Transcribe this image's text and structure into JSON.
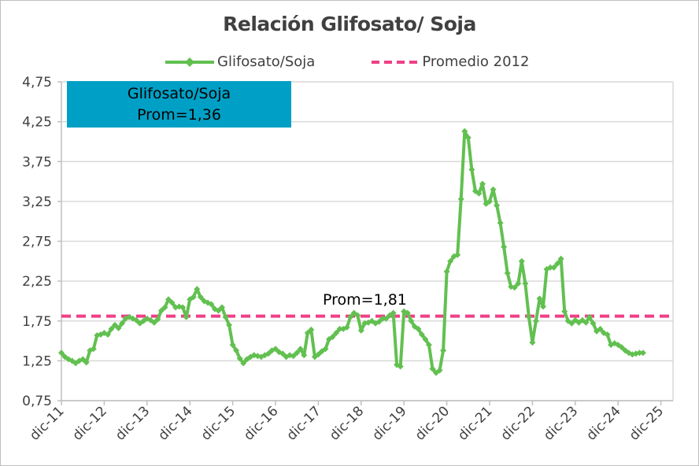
{
  "chart_data": {
    "type": "line",
    "title": "Relación Glifosato/ Soja",
    "xlabel": "",
    "ylabel": "",
    "ylim": [
      0.75,
      4.75
    ],
    "yticks": [
      "0,75",
      "1,25",
      "1,75",
      "2,25",
      "2,75",
      "3,25",
      "3,75",
      "4,25",
      "4,75"
    ],
    "ytick_values": [
      0.75,
      1.25,
      1.75,
      2.25,
      2.75,
      3.25,
      3.75,
      4.25,
      4.75
    ],
    "xticks": [
      "dic-11",
      "dic-12",
      "dic-13",
      "dic-14",
      "dic-15",
      "dic-16",
      "dic-17",
      "dic-18",
      "dic-19",
      "dic-20",
      "dic-21",
      "dic-22",
      "dic-23",
      "dic-24",
      "dic-25"
    ],
    "x_start": "dic-11",
    "x_step": "monthly",
    "grid": true,
    "legend_position": "top",
    "series": [
      {
        "name": "Glifosato/Soja",
        "color": "#62c050",
        "marker": "diamond",
        "values": [
          1.35,
          1.3,
          1.27,
          1.25,
          1.22,
          1.25,
          1.27,
          1.23,
          1.38,
          1.4,
          1.57,
          1.58,
          1.6,
          1.58,
          1.65,
          1.7,
          1.66,
          1.72,
          1.78,
          1.8,
          1.78,
          1.76,
          1.72,
          1.75,
          1.78,
          1.76,
          1.73,
          1.77,
          1.88,
          1.92,
          2.02,
          1.98,
          1.92,
          1.93,
          1.92,
          1.8,
          2.02,
          2.05,
          2.15,
          2.05,
          2.0,
          1.98,
          1.96,
          1.9,
          1.88,
          1.92,
          1.8,
          1.7,
          1.45,
          1.38,
          1.28,
          1.22,
          1.27,
          1.3,
          1.32,
          1.31,
          1.3,
          1.32,
          1.34,
          1.38,
          1.4,
          1.36,
          1.34,
          1.3,
          1.32,
          1.31,
          1.35,
          1.4,
          1.32,
          1.6,
          1.64,
          1.3,
          1.33,
          1.37,
          1.4,
          1.52,
          1.55,
          1.6,
          1.65,
          1.65,
          1.67,
          1.8,
          1.85,
          1.82,
          1.63,
          1.72,
          1.73,
          1.75,
          1.72,
          1.74,
          1.78,
          1.78,
          1.82,
          1.85,
          1.2,
          1.18,
          1.87,
          1.85,
          1.75,
          1.68,
          1.65,
          1.58,
          1.52,
          1.45,
          1.15,
          1.1,
          1.13,
          1.38,
          2.37,
          2.5,
          2.56,
          2.58,
          3.28,
          4.13,
          4.05,
          3.65,
          3.38,
          3.35,
          3.47,
          3.22,
          3.25,
          3.4,
          3.2,
          2.98,
          2.68,
          2.35,
          2.18,
          2.17,
          2.22,
          2.5,
          2.22,
          1.8,
          1.48,
          1.75,
          2.03,
          1.93,
          2.4,
          2.42,
          2.42,
          2.47,
          2.53,
          1.87,
          1.75,
          1.72,
          1.76,
          1.73,
          1.76,
          1.73,
          1.8,
          1.72,
          1.62,
          1.65,
          1.6,
          1.58,
          1.45,
          1.47,
          1.45,
          1.42,
          1.38,
          1.35,
          1.33,
          1.34,
          1.35,
          1.35
        ]
      },
      {
        "name": "Promedio 2012",
        "color": "#ef3f86",
        "style": "dashed",
        "value": 1.81
      }
    ],
    "annotations": {
      "box_line1": "Glifosato/Soja",
      "box_line2": "Prom=1,36",
      "avg_label": "Prom=1,81",
      "box_color": "#00a0c6"
    }
  }
}
